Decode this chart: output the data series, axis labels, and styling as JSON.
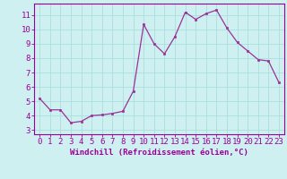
{
  "x_data": [
    0,
    1,
    2,
    3,
    4,
    5,
    6,
    7,
    8,
    9,
    10,
    11,
    12,
    13,
    14,
    15,
    16,
    17,
    18,
    19,
    20,
    21,
    22,
    23
  ],
  "y_data": [
    5.2,
    4.4,
    4.4,
    3.5,
    3.6,
    4.0,
    4.05,
    4.15,
    4.3,
    5.7,
    10.35,
    9.0,
    8.3,
    9.5,
    11.2,
    10.7,
    11.1,
    11.35,
    10.1,
    9.1,
    8.5,
    7.9,
    7.8,
    6.3
  ],
  "line_color": "#993399",
  "marker_color": "#993399",
  "bg_color": "#cff0f0",
  "grid_color": "#aadddd",
  "xlabel": "Windchill (Refroidissement éolien,°C)",
  "ylabel_ticks": [
    3,
    4,
    5,
    6,
    7,
    8,
    9,
    10,
    11
  ],
  "xlim": [
    -0.5,
    23.5
  ],
  "ylim": [
    2.7,
    11.8
  ],
  "xlabel_color": "#990099",
  "tick_color": "#990099",
  "spine_color": "#990099",
  "label_fontsize": 6.5,
  "tick_fontsize": 6.5
}
